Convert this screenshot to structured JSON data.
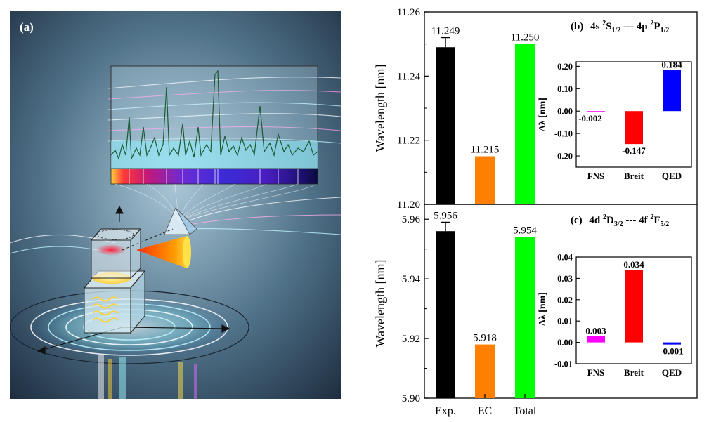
{
  "illustration": {
    "label": "(a)",
    "description_icons": [
      "ion-trap-icon",
      "prism-icon",
      "spectrum-icon",
      "coordinate-axes-icon"
    ]
  },
  "chart_data": [
    {
      "type": "bar",
      "panel_label": "(b)",
      "title_parts": {
        "a": "4s ",
        "b": "2",
        "c": "S",
        "d": "1/2",
        "e": " --- 4p ",
        "f": "2",
        "g": "P",
        "h": "1/2"
      },
      "ylabel": "Wavelength [nm]",
      "ylim": [
        11.2,
        11.26
      ],
      "yticks": [
        "11.20",
        "11.22",
        "11.24",
        "11.26"
      ],
      "categories": [
        "Exp.",
        "EC",
        "Total"
      ],
      "values": [
        11.249,
        11.215,
        11.25
      ],
      "value_labels": [
        "11.249",
        "11.215",
        "11.250"
      ],
      "error": [
        0.003,
        null,
        null
      ],
      "colors": [
        "#000000",
        "#ff8000",
        "#00ff00"
      ],
      "inset": {
        "type": "bar",
        "ylabel": "Δλ [nm]",
        "ylim": [
          -0.25,
          0.22
        ],
        "yticks": [
          "-0.20",
          "-0.10",
          "0.00",
          "0.10",
          "0.20"
        ],
        "categories": [
          "FNS",
          "Breit",
          "QED"
        ],
        "values": [
          -0.002,
          -0.147,
          0.184
        ],
        "value_labels": [
          "-0.002",
          "-0.147",
          "0.184"
        ],
        "colors": [
          "#ff00ff",
          "#ff0000",
          "#0000ff"
        ]
      }
    },
    {
      "type": "bar",
      "panel_label": "(c)",
      "title_parts": {
        "a": "4d ",
        "b": "2",
        "c": "D",
        "d": "3/2",
        "e": " --- 4f ",
        "f": "2",
        "g": "F",
        "h": "5/2"
      },
      "ylabel": "Wavelength [nm]",
      "ylim": [
        5.9,
        5.965
      ],
      "yticks": [
        "5.90",
        "5.92",
        "5.94",
        "5.96"
      ],
      "categories": [
        "Exp.",
        "EC",
        "Total"
      ],
      "values": [
        5.956,
        5.918,
        5.954
      ],
      "value_labels": [
        "5.956",
        "5.918",
        "5.954"
      ],
      "error": [
        0.003,
        null,
        null
      ],
      "colors": [
        "#000000",
        "#ff8000",
        "#00ff00"
      ],
      "inset": {
        "type": "bar",
        "ylabel": "Δλ [nm]",
        "ylim": [
          -0.01,
          0.04
        ],
        "yticks": [
          "-0.01",
          "0.00",
          "0.01",
          "0.02",
          "0.03",
          "0.04"
        ],
        "categories": [
          "FNS",
          "Breit",
          "QED"
        ],
        "values": [
          0.003,
          0.034,
          -0.001
        ],
        "value_labels": [
          "0.003",
          "0.034",
          "-0.001"
        ],
        "colors": [
          "#ff00ff",
          "#ff0000",
          "#0000ff"
        ]
      }
    }
  ]
}
